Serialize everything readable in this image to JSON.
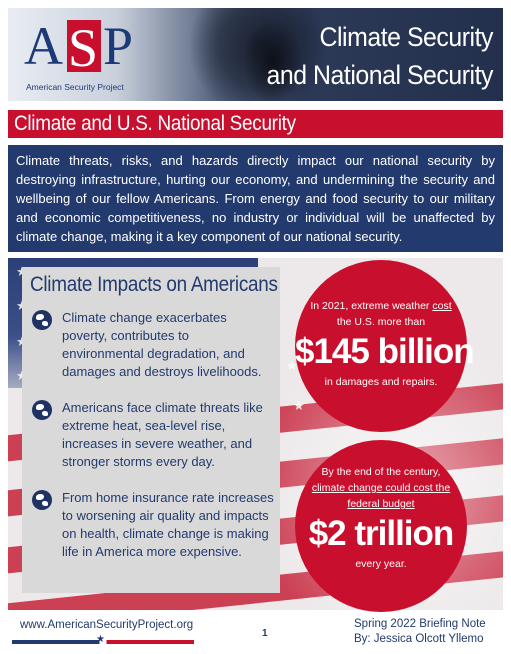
{
  "header": {
    "logo_letters": "ASP",
    "logo_org": "American Security Project",
    "title_line1": "Climate Security",
    "title_line2": "and National Security"
  },
  "section_title": "Climate and U.S. National Security",
  "intro": "Climate threats, risks, and hazards directly impact our national security by destroying infrastructure, hurting our economy, and undermining the security and wellbeing of our fellow Americans. From energy and food security to our military and economic competitiveness, no industry or individual will be unaffected by climate change, making it a key component of our national security.",
  "impacts": {
    "heading": "Climate Impacts on Americans",
    "items": [
      "Climate change exacerbates poverty, contributes to environmental degradation, and damages and destroys livelihoods.",
      "Americans face climate threats like extreme heat, sea-level rise, increases in severe weather, and stronger storms every day.",
      "From home insurance rate increases to worsening air quality and impacts on health, climate change is making life in America more expensive."
    ],
    "icon": "globe-icon"
  },
  "stat1": {
    "line1_pre": "In 2021, extreme weather ",
    "line1_link": "cost",
    "line2": "the U.S. more than",
    "value": "$145 billion",
    "after": "in damages and repairs."
  },
  "stat2": {
    "line1": "By the end of the century,",
    "line2_link": "climate change could cost the",
    "line3_link": "federal budget",
    "value": "$2 trillion",
    "after": "every year."
  },
  "footer": {
    "url": "www.AmericanSecurityProject.org",
    "page": "1",
    "note_line1": "Spring 2022 Briefing Note",
    "note_line2": "By: Jessica Olcott Yllemo"
  },
  "colors": {
    "navy": "#233a6e",
    "red": "#c8102e",
    "panel_gray": "#d9d9d9"
  }
}
